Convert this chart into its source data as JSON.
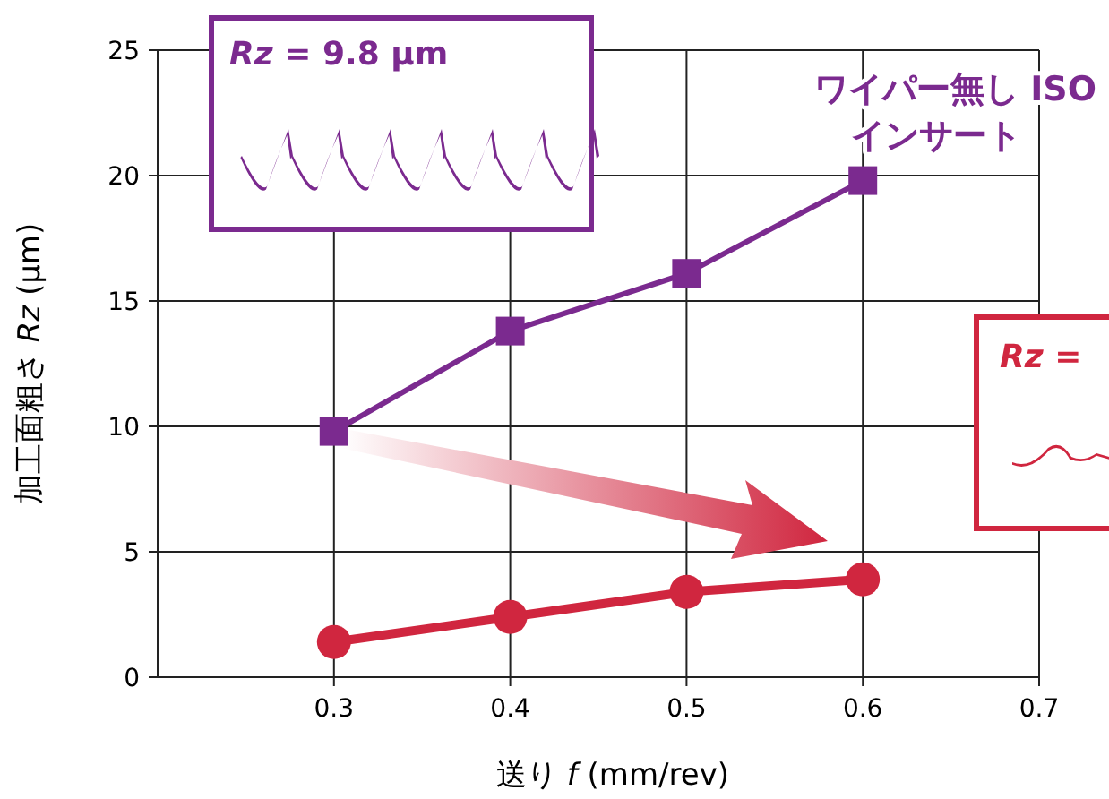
{
  "chart_data": {
    "type": "line",
    "xlabel": "送り *f* (mm/rev)",
    "ylabel": "加工面粗さ *Rz* (µm)",
    "xlim": [
      0.2,
      0.7
    ],
    "xticks": [
      0.3,
      0.4,
      0.5,
      0.6,
      0.7
    ],
    "ylim": [
      0,
      25
    ],
    "yticks": [
      0,
      5,
      10,
      15,
      20,
      25
    ],
    "grid": true,
    "series": [
      {
        "name": "ワイパー無し ISO インサート",
        "color": "#7b2a8f",
        "marker": "square",
        "x": [
          0.3,
          0.4,
          0.5,
          0.6
        ],
        "values": [
          9.8,
          13.8,
          16.1,
          19.8
        ]
      },
      {
        "color": "#d0263f",
        "marker": "circle",
        "x": [
          0.3,
          0.4,
          0.5,
          0.6
        ],
        "values": [
          1.4,
          2.4,
          3.4,
          3.9
        ]
      }
    ],
    "annotations": [
      "*Rz* = 9.8 µm",
      "*Rz* ="
    ]
  }
}
